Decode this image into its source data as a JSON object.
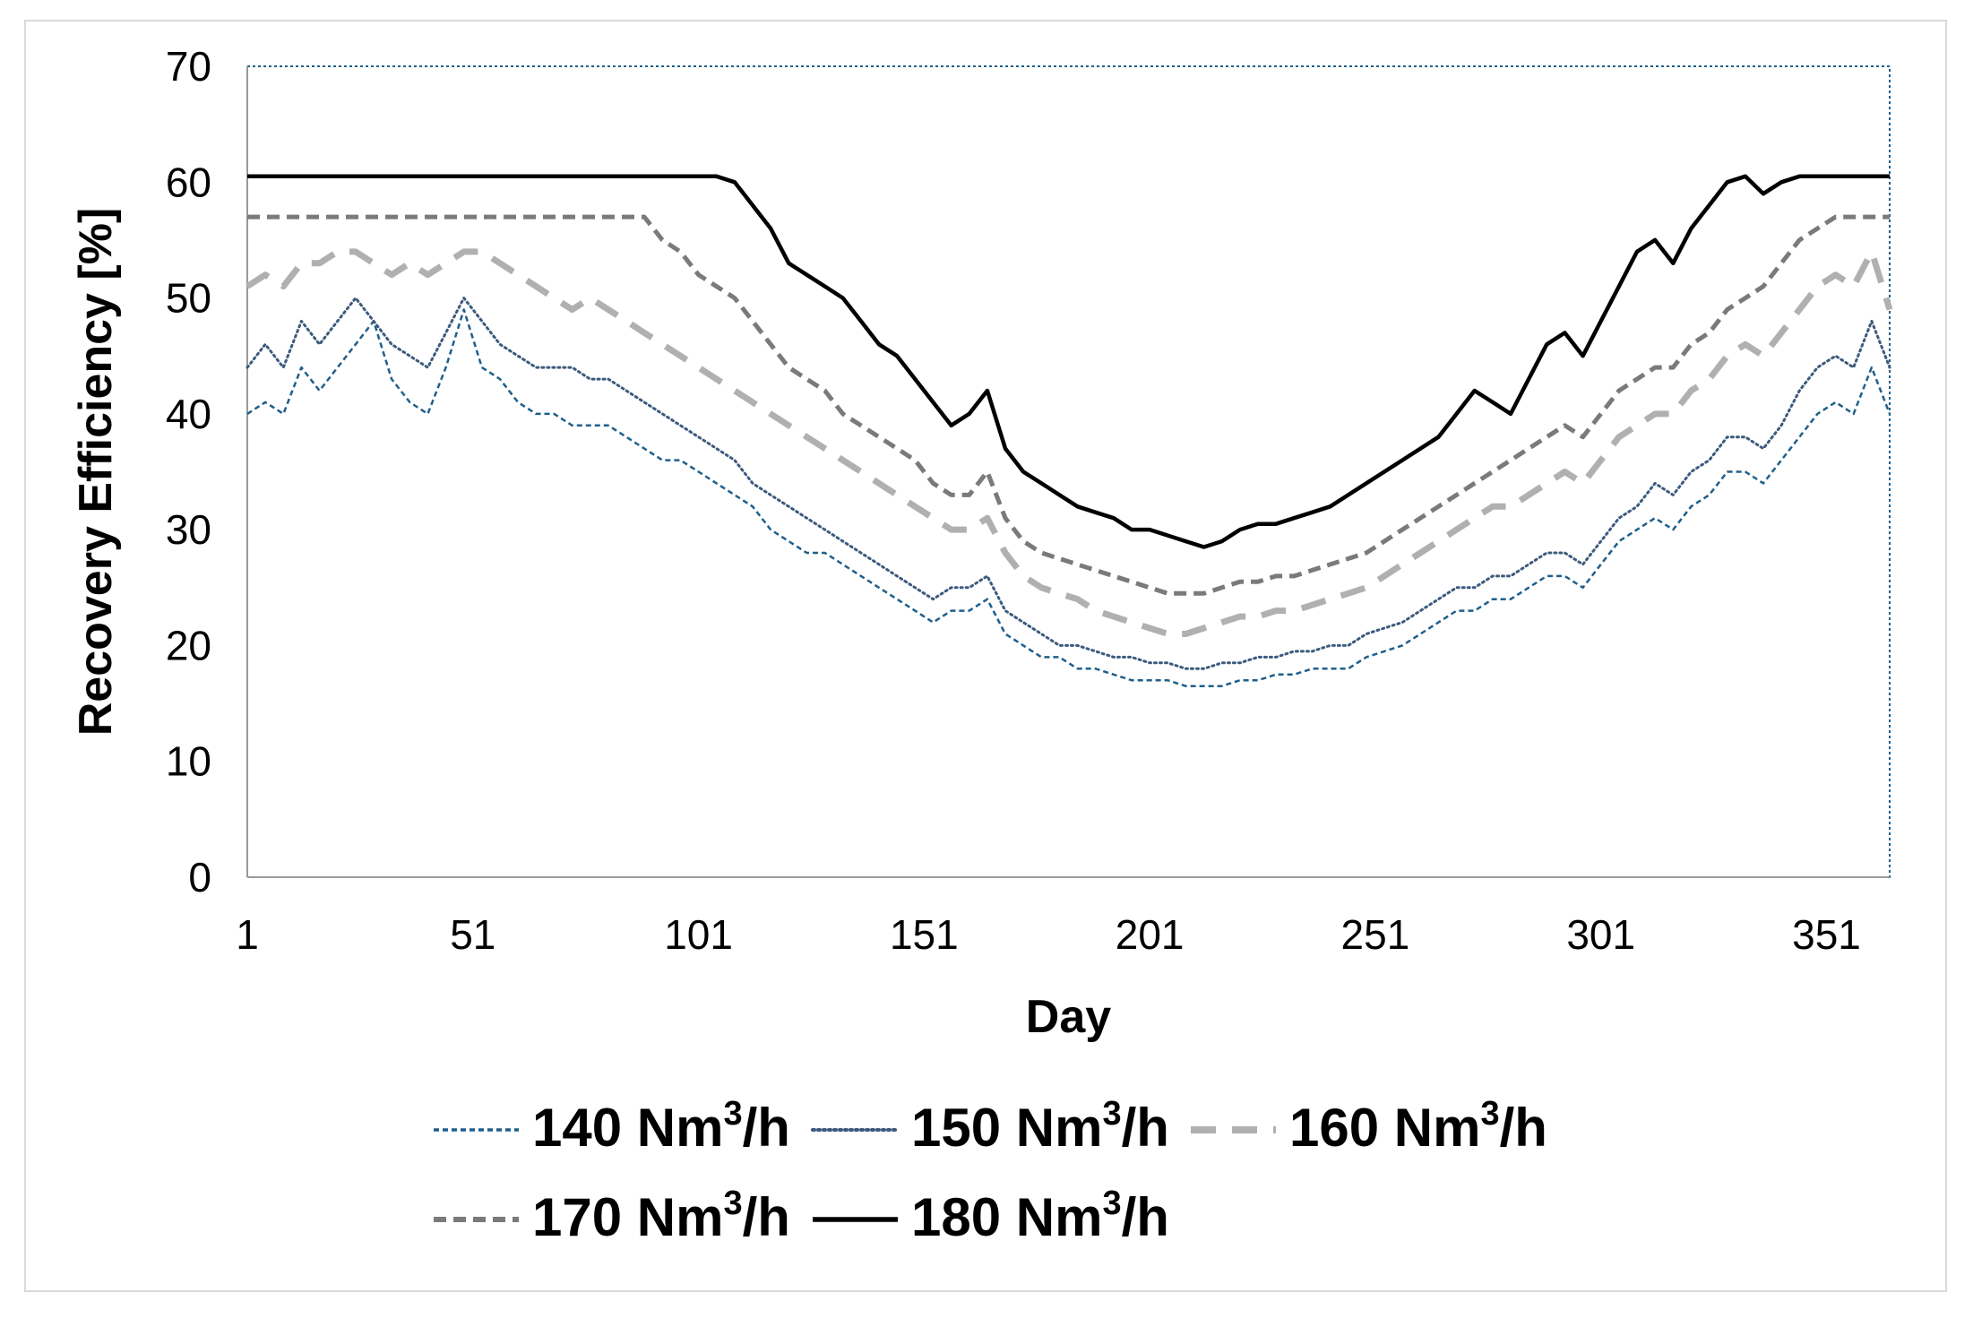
{
  "chart_data": {
    "type": "line",
    "title": "",
    "xlabel": "Day",
    "ylabel": "Recovery Efficiency [%]",
    "xlim": [
      1,
      365
    ],
    "ylim": [
      0,
      70
    ],
    "xticks": [
      1,
      51,
      101,
      151,
      201,
      251,
      301,
      351
    ],
    "xtick_labels": [
      "1",
      "51",
      "101",
      "151",
      "201",
      "251",
      "301",
      "351"
    ],
    "yticks": [
      0,
      10,
      20,
      30,
      40,
      50,
      60,
      70
    ],
    "ytick_labels": [
      "0",
      "10",
      "20",
      "30",
      "40",
      "50",
      "60",
      "70"
    ],
    "grid": false,
    "legend_position": "bottom",
    "series": [
      {
        "name": "140 Nm3/h",
        "label_base": "140 Nm",
        "label_sup": "3",
        "label_tail": "/h",
        "color": "#1f5f8b",
        "style": "dashed-fine",
        "x": [
          1,
          5,
          9,
          13,
          17,
          21,
          25,
          29,
          33,
          37,
          41,
          45,
          49,
          53,
          57,
          61,
          65,
          69,
          73,
          77,
          81,
          85,
          89,
          93,
          97,
          101,
          105,
          109,
          113,
          117,
          121,
          125,
          129,
          133,
          137,
          141,
          145,
          149,
          153,
          157,
          161,
          165,
          169,
          173,
          177,
          181,
          185,
          189,
          193,
          197,
          201,
          205,
          209,
          213,
          217,
          221,
          225,
          229,
          233,
          237,
          241,
          245,
          249,
          253,
          257,
          261,
          265,
          269,
          273,
          277,
          281,
          285,
          289,
          293,
          297,
          301,
          305,
          309,
          313,
          317,
          321,
          325,
          329,
          333,
          337,
          341,
          345,
          349,
          353,
          357,
          361,
          365
        ],
        "values": [
          40,
          41,
          40,
          44,
          42,
          44,
          46,
          48,
          43,
          41,
          40,
          44,
          49,
          44,
          43,
          41,
          40,
          40,
          39,
          39,
          39,
          38,
          37,
          36,
          36,
          35,
          34,
          33,
          32,
          30,
          29,
          28,
          28,
          27,
          26,
          25,
          24,
          23,
          22,
          23,
          23,
          24,
          21,
          20,
          19,
          19,
          18,
          18,
          17.5,
          17,
          17,
          17,
          16.5,
          16.5,
          16.5,
          17,
          17,
          17.5,
          17.5,
          18,
          18,
          18,
          19,
          19.5,
          20,
          21,
          22,
          23,
          23,
          24,
          24,
          25,
          26,
          26,
          25,
          27,
          29,
          30,
          31,
          30,
          32,
          33,
          35,
          35,
          34,
          36,
          38,
          40,
          41,
          40,
          44,
          40
        ]
      },
      {
        "name": "150 Nm3/h",
        "label_base": "150 Nm",
        "label_sup": "3",
        "label_tail": "/h",
        "color": "#3c5a7d",
        "style": "dotted",
        "x": [
          1,
          5,
          9,
          13,
          17,
          21,
          25,
          29,
          33,
          37,
          41,
          45,
          49,
          53,
          57,
          61,
          65,
          69,
          73,
          77,
          81,
          85,
          89,
          93,
          97,
          101,
          105,
          109,
          113,
          117,
          121,
          125,
          129,
          133,
          137,
          141,
          145,
          149,
          153,
          157,
          161,
          165,
          169,
          173,
          177,
          181,
          185,
          189,
          193,
          197,
          201,
          205,
          209,
          213,
          217,
          221,
          225,
          229,
          233,
          237,
          241,
          245,
          249,
          253,
          257,
          261,
          265,
          269,
          273,
          277,
          281,
          285,
          289,
          293,
          297,
          301,
          305,
          309,
          313,
          317,
          321,
          325,
          329,
          333,
          337,
          341,
          345,
          349,
          353,
          357,
          361,
          365
        ],
        "values": [
          44,
          46,
          44,
          48,
          46,
          48,
          50,
          48,
          46,
          45,
          44,
          47,
          50,
          48,
          46,
          45,
          44,
          44,
          44,
          43,
          43,
          42,
          41,
          40,
          39,
          38,
          37,
          36,
          34,
          33,
          32,
          31,
          30,
          29,
          28,
          27,
          26,
          25,
          24,
          25,
          25,
          26,
          23,
          22,
          21,
          20,
          20,
          19.5,
          19,
          19,
          18.5,
          18.5,
          18,
          18,
          18.5,
          18.5,
          19,
          19,
          19.5,
          19.5,
          20,
          20,
          21,
          21.5,
          22,
          23,
          24,
          25,
          25,
          26,
          26,
          27,
          28,
          28,
          27,
          29,
          31,
          32,
          34,
          33,
          35,
          36,
          38,
          38,
          37,
          39,
          42,
          44,
          45,
          44,
          48,
          44
        ]
      },
      {
        "name": "160 Nm3/h",
        "label_base": "160 Nm",
        "label_sup": "3",
        "label_tail": "/h",
        "color": "#b0b0b0",
        "style": "long-dash-light",
        "x": [
          1,
          5,
          9,
          13,
          17,
          21,
          25,
          29,
          33,
          37,
          41,
          45,
          49,
          53,
          57,
          61,
          65,
          69,
          73,
          77,
          81,
          85,
          89,
          93,
          97,
          101,
          105,
          109,
          113,
          117,
          121,
          125,
          129,
          133,
          137,
          141,
          145,
          149,
          153,
          157,
          161,
          165,
          169,
          173,
          177,
          181,
          185,
          189,
          193,
          197,
          201,
          205,
          209,
          213,
          217,
          221,
          225,
          229,
          233,
          237,
          241,
          245,
          249,
          253,
          257,
          261,
          265,
          269,
          273,
          277,
          281,
          285,
          289,
          293,
          297,
          301,
          305,
          309,
          313,
          317,
          321,
          325,
          329,
          333,
          337,
          341,
          345,
          349,
          353,
          357,
          361,
          365
        ],
        "values": [
          51,
          52,
          51,
          53,
          53,
          54,
          54,
          53,
          52,
          53,
          52,
          53,
          54,
          54,
          53,
          52,
          51,
          50,
          49,
          50,
          49,
          48,
          47,
          46,
          45,
          44,
          43,
          42,
          41,
          40,
          39,
          38,
          37,
          36,
          35,
          34,
          33,
          32,
          31,
          30,
          30,
          31,
          28,
          26,
          25,
          24.5,
          24,
          23,
          22.5,
          22,
          21.5,
          21,
          21,
          21.5,
          22,
          22.5,
          22.5,
          23,
          23,
          23.5,
          24,
          24.5,
          25,
          26,
          27,
          28,
          29,
          30,
          31,
          32,
          32,
          33,
          34,
          35,
          34,
          36,
          38,
          39,
          40,
          40,
          42,
          43,
          45,
          46,
          45,
          47,
          49,
          51,
          52,
          51,
          54,
          49
        ]
      },
      {
        "name": "170 Nm3/h",
        "label_base": "170 Nm",
        "label_sup": "3",
        "label_tail": "/h",
        "color": "#7a7a7a",
        "style": "dashed",
        "x": [
          1,
          5,
          9,
          13,
          17,
          21,
          25,
          29,
          33,
          37,
          41,
          45,
          49,
          53,
          57,
          61,
          65,
          69,
          73,
          77,
          81,
          85,
          89,
          93,
          97,
          101,
          105,
          109,
          113,
          117,
          121,
          125,
          129,
          133,
          137,
          141,
          145,
          149,
          153,
          157,
          161,
          165,
          169,
          173,
          177,
          181,
          185,
          189,
          193,
          197,
          201,
          205,
          209,
          213,
          217,
          221,
          225,
          229,
          233,
          237,
          241,
          245,
          249,
          253,
          257,
          261,
          265,
          269,
          273,
          277,
          281,
          285,
          289,
          293,
          297,
          301,
          305,
          309,
          313,
          317,
          321,
          325,
          329,
          333,
          337,
          341,
          345,
          349,
          353,
          357,
          361,
          365
        ],
        "values": [
          57,
          57,
          57,
          57,
          57,
          57,
          57,
          57,
          57,
          57,
          57,
          57,
          57,
          57,
          57,
          57,
          57,
          57,
          57,
          57,
          57,
          57,
          57,
          55,
          54,
          52,
          51,
          50,
          48,
          46,
          44,
          43,
          42,
          40,
          39,
          38,
          37,
          36,
          34,
          33,
          33,
          35,
          31,
          29,
          28,
          27.5,
          27,
          26.5,
          26,
          25.5,
          25,
          24.5,
          24.5,
          24.5,
          25,
          25.5,
          25.5,
          26,
          26,
          26.5,
          27,
          27.5,
          28,
          29,
          30,
          31,
          32,
          33,
          34,
          35,
          36,
          37,
          38,
          39,
          38,
          40,
          42,
          43,
          44,
          44,
          46,
          47,
          49,
          50,
          51,
          53,
          55,
          56,
          57,
          57,
          57,
          57
        ]
      },
      {
        "name": "180 Nm3/h",
        "label_base": "180 Nm",
        "label_sup": "3",
        "label_tail": "/h",
        "color": "#000000",
        "style": "solid",
        "x": [
          1,
          5,
          9,
          13,
          17,
          21,
          25,
          29,
          33,
          37,
          41,
          45,
          49,
          53,
          57,
          61,
          65,
          69,
          73,
          77,
          81,
          85,
          89,
          93,
          97,
          101,
          105,
          109,
          113,
          117,
          121,
          125,
          129,
          133,
          137,
          141,
          145,
          149,
          153,
          157,
          161,
          165,
          169,
          173,
          177,
          181,
          185,
          189,
          193,
          197,
          201,
          205,
          209,
          213,
          217,
          221,
          225,
          229,
          233,
          237,
          241,
          245,
          249,
          253,
          257,
          261,
          265,
          269,
          273,
          277,
          281,
          285,
          289,
          293,
          297,
          301,
          305,
          309,
          313,
          317,
          321,
          325,
          329,
          333,
          337,
          341,
          345,
          349,
          353,
          357,
          361,
          365
        ],
        "values": [
          60.5,
          60.5,
          60.5,
          60.5,
          60.5,
          60.5,
          60.5,
          60.5,
          60.5,
          60.5,
          60.5,
          60.5,
          60.5,
          60.5,
          60.5,
          60.5,
          60.5,
          60.5,
          60.5,
          60.5,
          60.5,
          60.5,
          60.5,
          60.5,
          60.5,
          60.5,
          60.5,
          60,
          58,
          56,
          53,
          52,
          51,
          50,
          48,
          46,
          45,
          43,
          41,
          39,
          40,
          42,
          37,
          35,
          34,
          33,
          32,
          31.5,
          31,
          30,
          30,
          29.5,
          29,
          28.5,
          29,
          30,
          30.5,
          30.5,
          31,
          31.5,
          32,
          33,
          34,
          35,
          36,
          37,
          38,
          40,
          42,
          41,
          40,
          43,
          46,
          47,
          45,
          48,
          51,
          54,
          55,
          53,
          56,
          58,
          60,
          60.5,
          59,
          60,
          60.5,
          60.5,
          60.5,
          60.5,
          60.5,
          60.5
        ]
      }
    ]
  }
}
